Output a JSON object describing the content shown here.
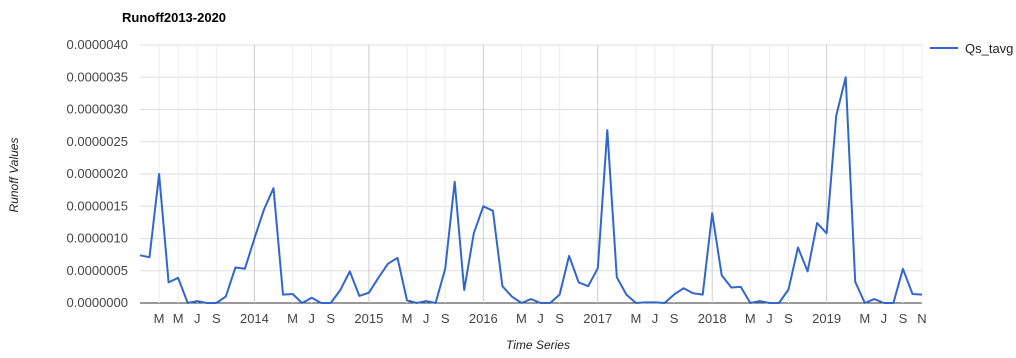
{
  "chart_data": {
    "type": "line",
    "title": "Runoff2013-2020",
    "xlabel": "Time Series",
    "ylabel": "Runoff Values",
    "ylim": [
      0,
      4e-06
    ],
    "yticks": [
      "0.0000000",
      "0.0000005",
      "0.0000010",
      "0.0000015",
      "0.0000020",
      "0.0000025",
      "0.0000030",
      "0.0000035",
      "0.0000040"
    ],
    "x_tick_labels": [
      {
        "label": "M",
        "month": 2
      },
      {
        "label": "M",
        "month": 4
      },
      {
        "label": "J",
        "month": 6
      },
      {
        "label": "S",
        "month": 8
      },
      {
        "label": "2014",
        "month": 12
      },
      {
        "label": "M",
        "month": 16
      },
      {
        "label": "J",
        "month": 18
      },
      {
        "label": "S",
        "month": 20
      },
      {
        "label": "2015",
        "month": 24
      },
      {
        "label": "M",
        "month": 28
      },
      {
        "label": "J",
        "month": 30
      },
      {
        "label": "S",
        "month": 32
      },
      {
        "label": "2016",
        "month": 36
      },
      {
        "label": "M",
        "month": 40
      },
      {
        "label": "J",
        "month": 42
      },
      {
        "label": "S",
        "month": 44
      },
      {
        "label": "2017",
        "month": 48
      },
      {
        "label": "M",
        "month": 52
      },
      {
        "label": "J",
        "month": 54
      },
      {
        "label": "S",
        "month": 56
      },
      {
        "label": "2018",
        "month": 60
      },
      {
        "label": "M",
        "month": 64
      },
      {
        "label": "J",
        "month": 66
      },
      {
        "label": "S",
        "month": 68
      },
      {
        "label": "2019",
        "month": 72
      },
      {
        "label": "M",
        "month": 76
      },
      {
        "label": "J",
        "month": 78
      },
      {
        "label": "S",
        "month": 80
      },
      {
        "label": "N",
        "month": 82
      }
    ],
    "grid": true,
    "legend_position": "top-right",
    "series": [
      {
        "name": "Qs_tavg",
        "color": "#3366cc",
        "values": [
          7.4e-07,
          7.1e-07,
          2e-06,
          3.2e-07,
          3.9e-07,
          0.0,
          3e-08,
          0.0,
          0.0,
          1e-07,
          5.5e-07,
          5.3e-07,
          1e-06,
          1.45e-06,
          1.78e-06,
          1.3e-07,
          1.4e-07,
          0.0,
          8e-08,
          0.0,
          0.0,
          2e-07,
          4.9e-07,
          1.1e-07,
          1.6e-07,
          3.9e-07,
          6.1e-07,
          7e-07,
          4e-08,
          0.0,
          3e-08,
          0.0,
          5.3e-07,
          1.88e-06,
          2e-07,
          1.08e-06,
          1.5e-06,
          1.43e-06,
          2.6e-07,
          1e-07,
          0.0,
          6e-08,
          0.0,
          0.0,
          1.3e-07,
          7.3e-07,
          3.2e-07,
          2.6e-07,
          5.4e-07,
          2.68e-06,
          4e-07,
          1.3e-07,
          0.0,
          1e-08,
          1e-08,
          0.0,
          1.3e-07,
          2.3e-07,
          1.5e-07,
          1.3e-07,
          1.39e-06,
          4.3e-07,
          2.4e-07,
          2.5e-07,
          0.0,
          3e-08,
          0.0,
          0.0,
          2.1e-07,
          8.6e-07,
          4.9e-07,
          1.24e-06,
          1.08e-06,
          2.9e-06,
          3.5e-06,
          3.3e-07,
          0.0,
          6e-08,
          0.0,
          0.0,
          5.3e-07,
          1.4e-07,
          1.3e-07
        ]
      }
    ]
  }
}
